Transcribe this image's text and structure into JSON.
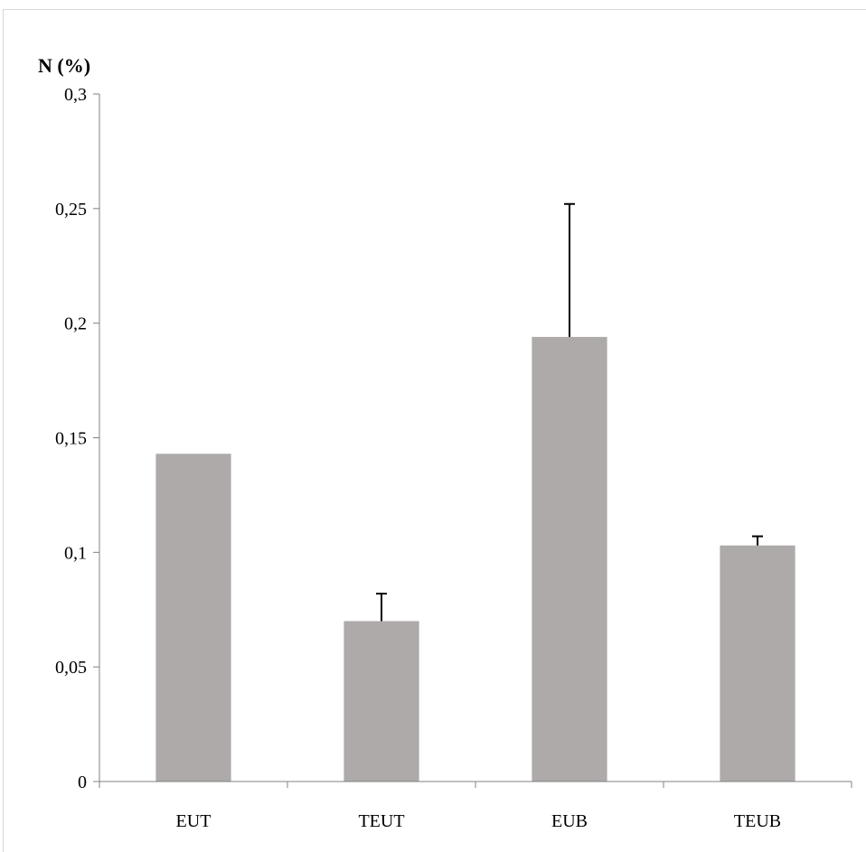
{
  "chart_data": {
    "type": "bar",
    "ylabel": "N (%)",
    "categories": [
      "EUT",
      "TEUT",
      "EUB",
      "TEUB"
    ],
    "values": [
      0.143,
      0.07,
      0.194,
      0.103
    ],
    "error_plus": [
      0,
      0.012,
      0.058,
      0.004
    ],
    "ylim": [
      0,
      0.3
    ],
    "yticks": [
      0,
      0.05,
      0.1,
      0.15,
      0.2,
      0.25,
      0.3
    ],
    "ytick_labels": [
      "0",
      "0,05",
      "0,1",
      "0,15",
      "0,2",
      "0,25",
      "0,3"
    ],
    "bar_color": "#aeaaaa",
    "axis_color": "#808080",
    "grid": false,
    "legend": "none"
  }
}
